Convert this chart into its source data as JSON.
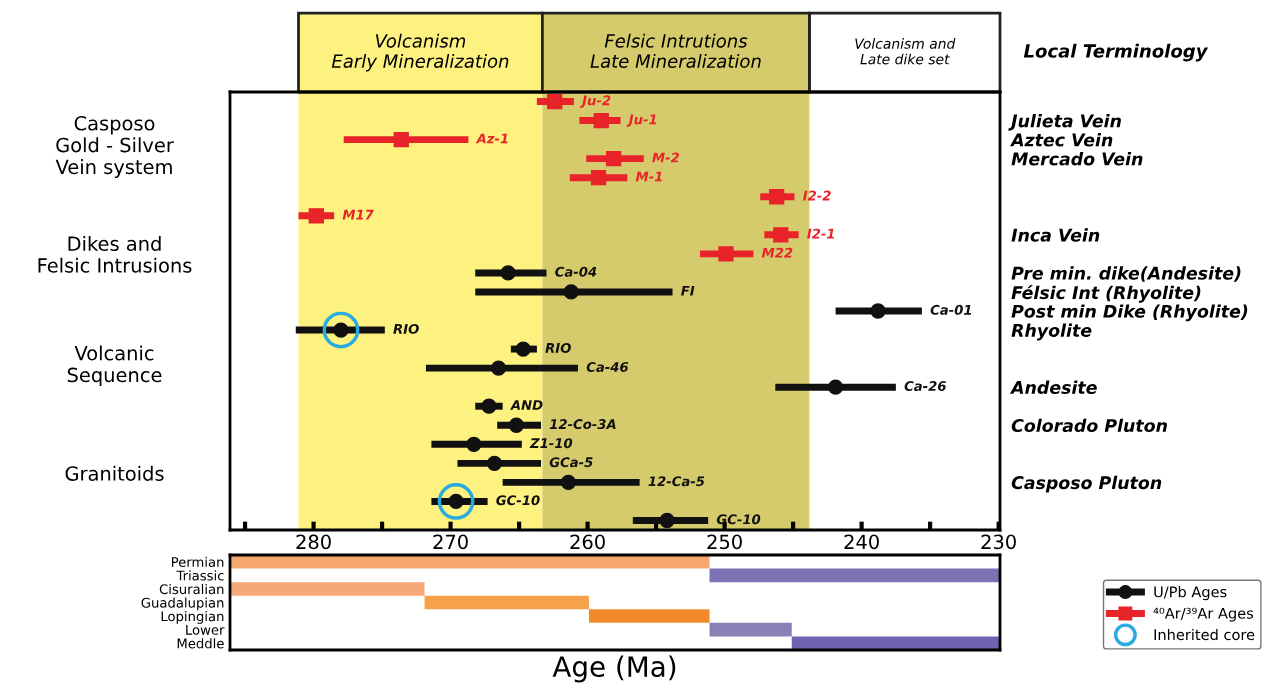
{
  "chart_data": [
    {
      "type": "scatter",
      "orientation": "horizontal",
      "categories": [
        "Ju-2",
        "Ju-1",
        "Az-1",
        "M-2",
        "M-1",
        "I2-2",
        "M17",
        "I2-1",
        "M22",
        "Ca-04",
        "FI",
        "Ca-01",
        "RIO",
        "RIO",
        "Ca-46",
        "Ca-26",
        "AND",
        "12-Co-3A",
        "Z1-10",
        "GCa-5",
        "12-Ca-5",
        "GC-10",
        "GC-10"
      ],
      "y2_categories": [
        null,
        "Julieta Vein",
        "Aztec Vein",
        "Mercado Vein",
        null,
        null,
        null,
        "Inca Vein",
        null,
        "Pre min. dike(Andesite)",
        "Félsic Int (Rhyolite)",
        "Post min Dike (Rhyolite)",
        "Rhyolite",
        null,
        null,
        "Andesite",
        null,
        "Colorado Pluton",
        null,
        null,
        "Casposo Pluton",
        null,
        null
      ],
      "y2label": "Local Terminology",
      "xlim": [
        286.1,
        229.9
      ],
      "xticks": [
        {
          "value": 285,
          "label": null
        },
        280,
        {
          "value": 275,
          "label": null
        },
        270,
        {
          "value": 265,
          "label": null
        },
        260,
        {
          "value": 255,
          "label": null
        },
        250,
        {
          "value": 245,
          "label": null
        },
        240,
        {
          "value": 235,
          "label": null
        },
        230
      ],
      "tick_labels": "x",
      "grid": false,
      "legend": "bottom right",
      "series": [
        {
          "name": "U/Pb Ages",
          "color": "#111111",
          "marker": "circle",
          "values": [
            null,
            null,
            null,
            null,
            null,
            null,
            null,
            null,
            null,
            265.8,
            261.2,
            238.8,
            278.0,
            264.7,
            266.5,
            241.9,
            267.2,
            265.2,
            268.3,
            266.8,
            261.4,
            269.6,
            254.2
          ],
          "errors": [
            null,
            null,
            null,
            null,
            null,
            null,
            null,
            null,
            null,
            [
              263.0,
              268.2
            ],
            [
              253.8,
              268.2
            ],
            [
              235.6,
              241.9
            ],
            [
              274.8,
              281.3
            ],
            [
              263.7,
              265.6
            ],
            [
              260.7,
              271.8
            ],
            [
              237.5,
              246.3
            ],
            [
              266.2,
              268.2
            ],
            [
              263.4,
              266.6
            ],
            [
              264.8,
              271.4
            ],
            [
              263.4,
              269.5
            ],
            [
              256.2,
              266.2
            ],
            [
              267.3,
              271.4
            ],
            [
              251.2,
              256.7
            ]
          ]
        },
        {
          "name": "⁴⁰Ar/³⁹Ar Ages",
          "color": "#e8232a",
          "marker": "square",
          "values": [
            262.4,
            259.0,
            273.6,
            258.1,
            259.2,
            246.2,
            279.8,
            245.9,
            249.9,
            null,
            null,
            null,
            null,
            null,
            null,
            null,
            null,
            null,
            null,
            null,
            null,
            null,
            null
          ],
          "errors": [
            [
              261.0,
              263.7
            ],
            [
              257.6,
              260.6
            ],
            [
              268.7,
              277.8
            ],
            [
              255.9,
              260.1
            ],
            [
              257.1,
              261.3
            ],
            [
              244.9,
              247.4
            ],
            [
              278.5,
              281.1
            ],
            [
              244.6,
              247.1
            ],
            [
              247.9,
              251.8
            ],
            null,
            null,
            null,
            null,
            null,
            null,
            null,
            null,
            null,
            null,
            null,
            null,
            null,
            null
          ]
        },
        {
          "name": "Inherited core",
          "color": "#29aae1",
          "marker": "circle",
          "values": [
            null,
            null,
            null,
            null,
            null,
            null,
            null,
            null,
            null,
            null,
            null,
            null,
            278.0,
            null,
            null,
            null,
            null,
            null,
            null,
            null,
            null,
            269.6,
            null
          ]
        }
      ],
      "bands": [
        {
          "axis": "x",
          "from": 281.1,
          "to": 263.3,
          "label": "Volcanism\nEarly Mineralization",
          "color": "#fdf17f"
        },
        {
          "axis": "x",
          "from": 263.3,
          "to": 243.8,
          "label": "Felsic Intrutions\nLate Mineralization",
          "color": "#d6cb6c"
        },
        {
          "axis": "x",
          "from": 243.8,
          "to": 229.9,
          "label": "Volcanism and\nLate dike set",
          "color": "#ffffff"
        }
      ],
      "annotations": [
        "Casposo\nGold - Silver\nVein system",
        "Dikes and\nFelsic Intrusions",
        "Volcanic\nSequence",
        "Granitoids"
      ]
    },
    {
      "type": "bar",
      "orientation": "horizontal",
      "categories": [
        "Permian",
        "Triassic",
        "Cisuralian",
        "Guadalupian",
        "Lopingian",
        "Lower",
        "Meddle"
      ],
      "base": [
        286.1,
        251.1,
        286.1,
        271.9,
        259.9,
        251.1,
        245.1
      ],
      "values": [
        -35.0,
        -21.2,
        -14.2,
        -12.0,
        -8.8,
        -6.0,
        -15.2
      ],
      "colors": [
        "#f6a870",
        "#7c72b4",
        "#f7a877",
        "#f6a24a",
        "#f28a2b",
        "#8b80b5",
        "#6f64b0"
      ],
      "xlim": [
        286.1,
        229.9
      ],
      "xlabel": "Age (Ma)",
      "tick_labels": "y"
    }
  ]
}
